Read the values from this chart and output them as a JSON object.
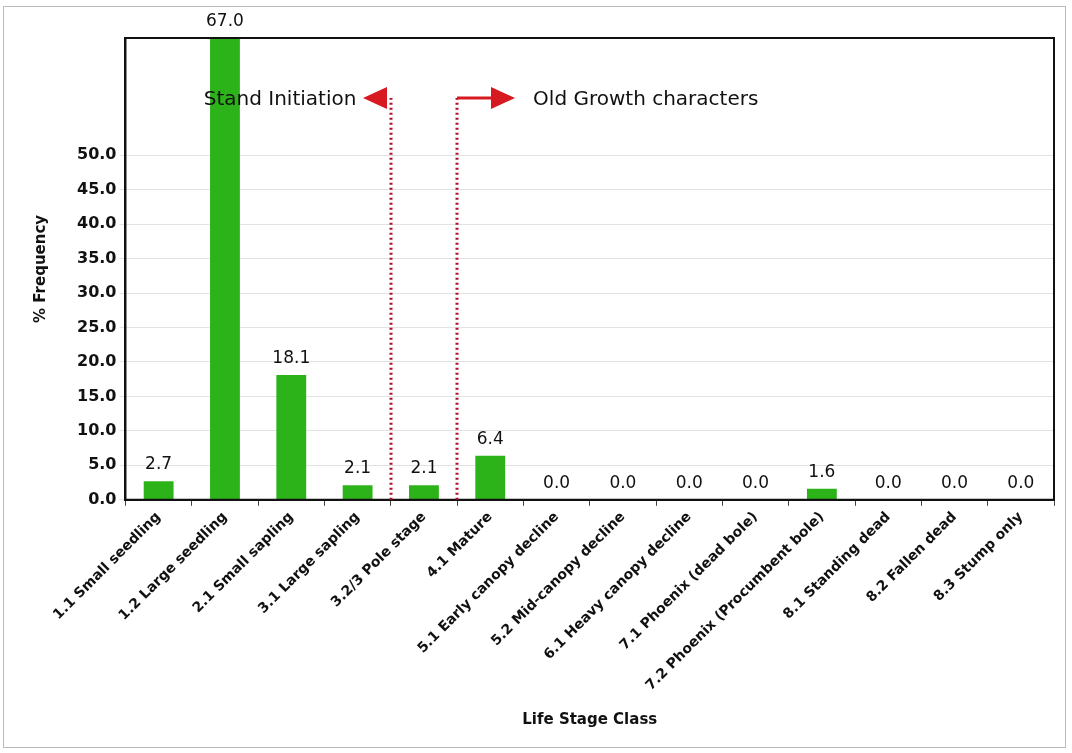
{
  "chart_data": {
    "type": "bar",
    "xlabel": "Life Stage Class",
    "ylabel": "% Frequency",
    "categories": [
      "1.1 Small seedling",
      "1.2 Large seedling",
      "2.1 Small sapling",
      "3.1 Large sapling",
      "3.2/3 Pole stage",
      "4.1 Mature",
      "5.1 Early canopy decline",
      "5.2 Mid-canopy decline",
      "6.1 Heavy canopy decline",
      "7.1 Phoenix (dead bole)",
      "7.2 Phoenix (Procumbent bole)",
      "8.1 Standing dead",
      "8.2 Fallen dead",
      "8.3 Stump only"
    ],
    "values": [
      2.7,
      67.0,
      18.1,
      2.1,
      2.1,
      6.4,
      0,
      0,
      0,
      0,
      1.6,
      0,
      0,
      0
    ],
    "value_labels": [
      "2.7",
      "67.0",
      "18.1",
      "2.1",
      "2.1",
      "6.4",
      "0.0",
      "0.0",
      "0.0",
      "0.0",
      "1.6",
      "0.0",
      "0.0",
      "0.0"
    ],
    "color": "#2db31a",
    "ylim": [
      0,
      67
    ],
    "yticks": [
      {
        "value": 0,
        "label": "0.0"
      },
      {
        "value": 5,
        "label": "5.0"
      },
      {
        "value": 10,
        "label": "10.0"
      },
      {
        "value": 15,
        "label": "15.0"
      },
      {
        "value": 20,
        "label": "20.0"
      },
      {
        "value": 25,
        "label": "25.0"
      },
      {
        "value": 30,
        "label": "30.0"
      },
      {
        "value": 35,
        "label": "35.0"
      },
      {
        "value": 40,
        "label": "40.0"
      },
      {
        "value": 45,
        "label": "45.0"
      },
      {
        "value": 50,
        "label": "50.0"
      }
    ],
    "grid": "y",
    "legend": false,
    "annotations": [
      "Stand Initiation",
      "Old Growth characters"
    ]
  }
}
